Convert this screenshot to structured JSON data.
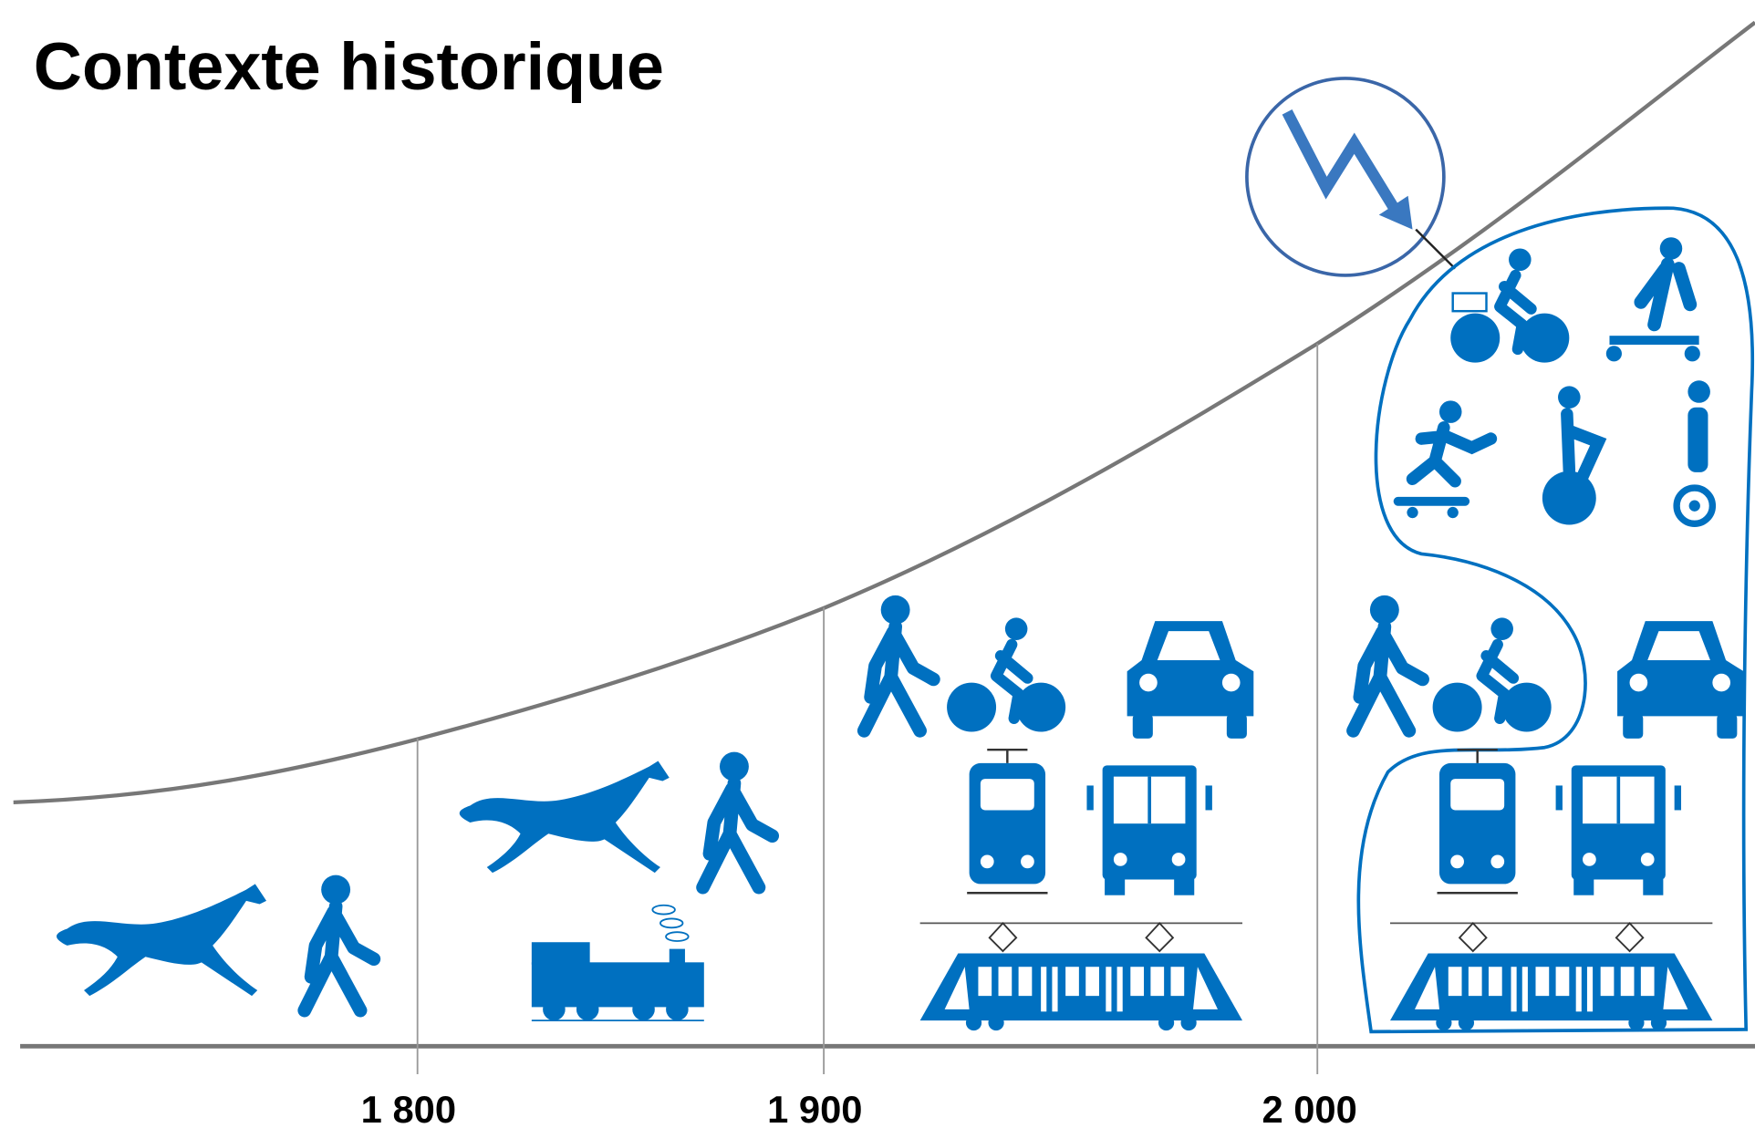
{
  "header": {
    "title": "Contexte historique"
  },
  "timeline": {
    "labels": [
      "1 800",
      "1 900",
      "2 000"
    ]
  }
}
